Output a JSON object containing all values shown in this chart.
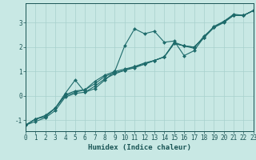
{
  "title": "",
  "xlabel": "Humidex (Indice chaleur)",
  "ylabel": "",
  "background_color": "#c8e8e4",
  "grid_color": "#a8d0cc",
  "line_color": "#1e6b6b",
  "marker_color": "#1e6b6b",
  "xlim": [
    0,
    23
  ],
  "ylim": [
    -1.45,
    3.8
  ],
  "xticks": [
    0,
    1,
    2,
    3,
    4,
    5,
    6,
    7,
    8,
    9,
    10,
    11,
    12,
    13,
    14,
    15,
    16,
    17,
    18,
    19,
    20,
    21,
    22,
    23
  ],
  "yticks": [
    -1,
    0,
    1,
    2,
    3
  ],
  "series_x": [
    0,
    1,
    2,
    3,
    4,
    5,
    6,
    7,
    8,
    9,
    10,
    11,
    12,
    13,
    14,
    15,
    16,
    17,
    18,
    19,
    20,
    21,
    22,
    23
  ],
  "series": [
    [
      -1.2,
      -0.95,
      -0.8,
      -0.5,
      0.1,
      0.65,
      0.15,
      0.3,
      0.65,
      1.0,
      2.05,
      2.75,
      2.55,
      2.65,
      2.2,
      2.25,
      1.65,
      1.85,
      2.4,
      2.85,
      3.05,
      3.35,
      3.3,
      3.5
    ],
    [
      -1.2,
      -0.95,
      -0.85,
      -0.5,
      0.05,
      0.2,
      0.25,
      0.6,
      0.85,
      1.0,
      1.1,
      1.2,
      1.35,
      1.45,
      1.6,
      2.2,
      2.05,
      1.95,
      2.45,
      2.8,
      3.05,
      3.3,
      3.3,
      3.5
    ],
    [
      -1.2,
      -0.95,
      -0.85,
      -0.5,
      0.0,
      0.15,
      0.25,
      0.5,
      0.8,
      0.95,
      1.05,
      1.2,
      1.3,
      1.45,
      1.6,
      2.15,
      2.05,
      2.0,
      2.4,
      2.8,
      3.05,
      3.3,
      3.3,
      3.5
    ],
    [
      -1.2,
      -1.05,
      -0.9,
      -0.6,
      -0.05,
      0.1,
      0.15,
      0.4,
      0.7,
      0.9,
      1.05,
      1.15,
      1.3,
      1.45,
      1.6,
      2.15,
      2.05,
      2.0,
      2.38,
      2.8,
      3.0,
      3.3,
      3.3,
      3.5
    ]
  ],
  "marker": "D",
  "markersize": 2.0,
  "linewidth": 0.8,
  "xlabel_fontsize": 6.5,
  "tick_fontsize": 5.5,
  "tick_color": "#1a5555",
  "axis_color": "#1a5555"
}
